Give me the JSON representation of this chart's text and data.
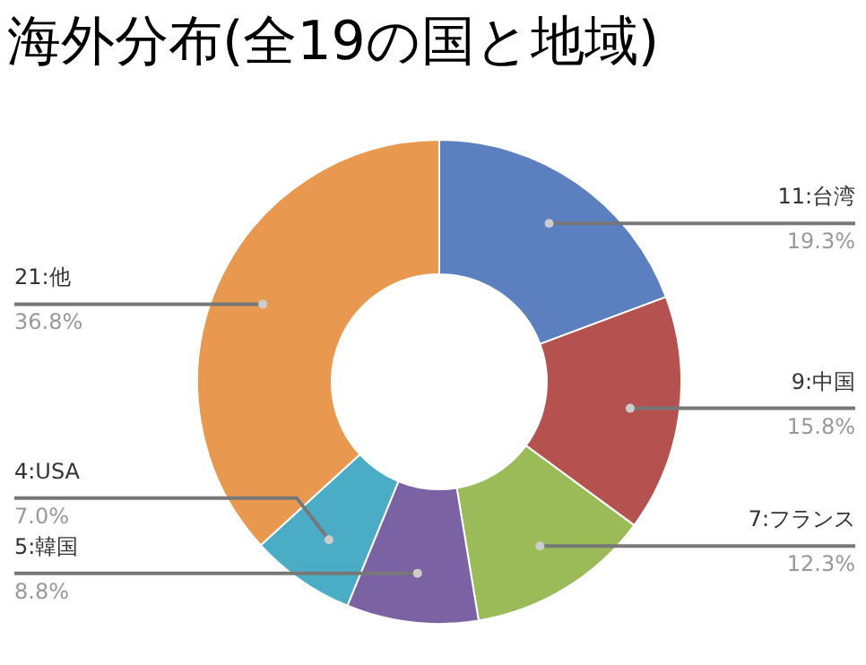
{
  "chart_data": {
    "type": "donut",
    "title": "海外分布(全19の国と地域)",
    "categories": [
      "11:台湾",
      "9:中国",
      "7:フランス",
      "5:韓国",
      "4:USA",
      "21:他"
    ],
    "values": [
      19.3,
      15.8,
      12.3,
      8.8,
      7.0,
      36.8
    ],
    "colors": [
      "#5b7fbf",
      "#b5524f",
      "#9bbb59",
      "#7b62a3",
      "#4bacc6",
      "#e8994f"
    ],
    "value_labels": [
      "19.3%",
      "15.8%",
      "12.3%",
      "8.8%",
      "7.0%",
      "36.8%"
    ]
  }
}
